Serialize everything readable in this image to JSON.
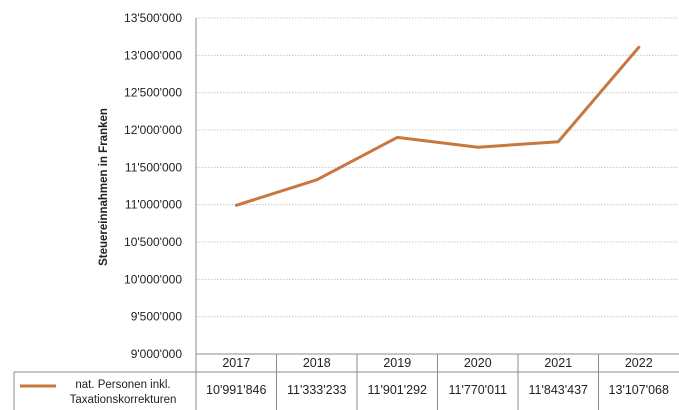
{
  "chart_data": {
    "type": "line",
    "categories": [
      "2017",
      "2018",
      "2019",
      "2020",
      "2021",
      "2022"
    ],
    "series": [
      {
        "name": "nat. Personen inkl. Taxationskorrekturen",
        "name_lines": [
          "nat. Personen inkl.",
          "Taxationskorrekturen"
        ],
        "values": [
          10991846,
          11333233,
          11901292,
          11770011,
          11843437,
          13107068
        ],
        "value_labels": [
          "10'991'846",
          "11'333'233",
          "11'901'292",
          "11'770'011",
          "11'843'437",
          "13'107'068"
        ],
        "color": "#c8773f"
      }
    ],
    "ylabel": "Steuereinnahmen in Franken",
    "ylim": [
      9000000,
      13500000
    ],
    "yticks": [
      9000000,
      9500000,
      10000000,
      10500000,
      11000000,
      11500000,
      12000000,
      12500000,
      13000000,
      13500000
    ],
    "ytick_labels": [
      "9'000'000",
      "9'500'000",
      "10'000'000",
      "10'500'000",
      "11'000'000",
      "11'500'000",
      "12'000'000",
      "12'500'000",
      "13'000'000",
      "13'500'000"
    ],
    "grid": true,
    "data_table": true,
    "legend": "data-table-left"
  }
}
